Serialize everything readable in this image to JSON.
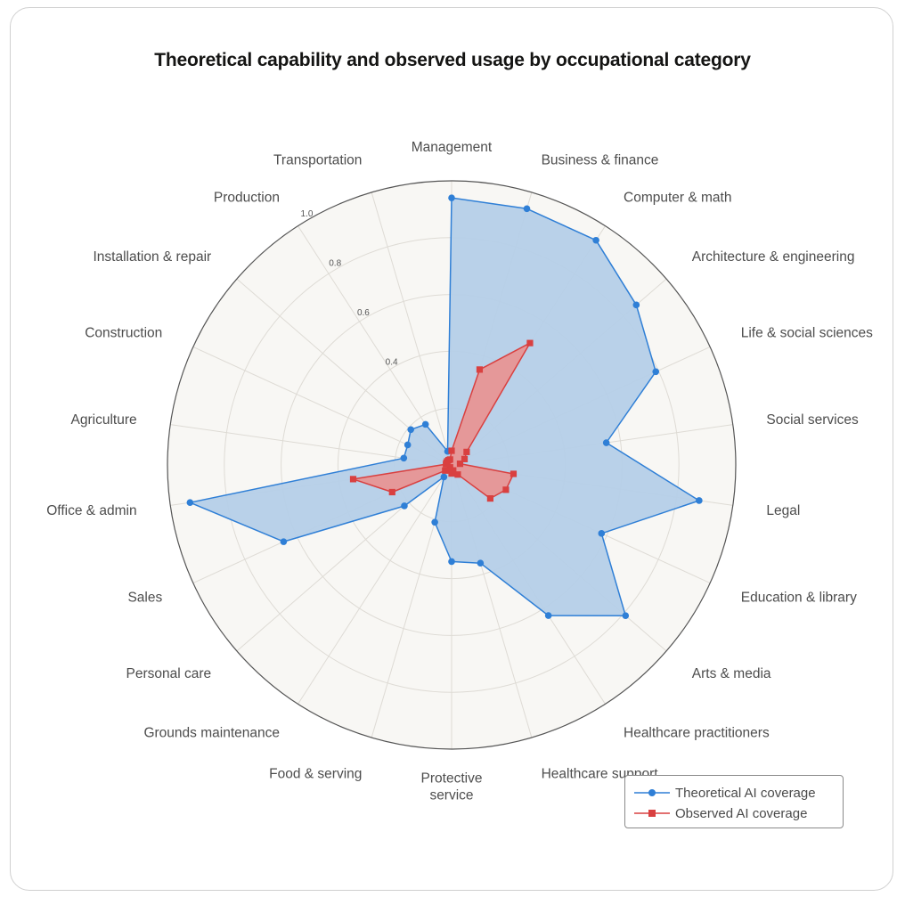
{
  "chart_data": {
    "type": "radar",
    "title": "Theoretical capability and observed usage by occupational category",
    "categories": [
      "Management",
      "Business & finance",
      "Computer & math",
      "Architecture & engineering",
      "Life & social sciences",
      "Social services",
      "Legal",
      "Education & library",
      "Arts & media",
      "Healthcare practitioners",
      "Healthcare support",
      "Protective\nservice",
      "Food & serving",
      "Grounds maintenance",
      "Personal care",
      "Sales",
      "Office & admin",
      "Agriculture",
      "Construction",
      "Installation & repair",
      "Production",
      "Transportation"
    ],
    "rlim": [
      0,
      1.0
    ],
    "rticks": [
      0.4,
      0.6,
      0.8,
      1.0
    ],
    "rtick_labels": [
      "0.4",
      "0.6",
      "0.8",
      "1.0"
    ],
    "grid": true,
    "legend_position": "bottom-right",
    "series": [
      {
        "name": "Theoretical AI coverage",
        "color": "#2f7fd6",
        "fill": "#b5cfe8",
        "marker": "circle",
        "values": [
          0.94,
          0.94,
          0.94,
          0.86,
          0.79,
          0.55,
          0.88,
          0.58,
          0.81,
          0.63,
          0.36,
          0.34,
          0.21,
          0.05,
          0.22,
          0.65,
          0.93,
          0.17,
          0.17,
          0.19,
          0.17,
          0.05
        ]
      },
      {
        "name": "Observed AI coverage",
        "color": "#d94040",
        "fill": "#ec8e8b",
        "marker": "square",
        "values": [
          0.05,
          0.35,
          0.51,
          0.07,
          0.05,
          0.03,
          0.22,
          0.21,
          0.18,
          0.04,
          0.02,
          0.03,
          0.02,
          0.01,
          0.03,
          0.23,
          0.35,
          0.02,
          0.02,
          0.02,
          0.02,
          0.02
        ]
      }
    ]
  },
  "legend": {
    "items": [
      {
        "label": "Theoretical AI coverage",
        "color": "#2f7fd6",
        "marker": "circle"
      },
      {
        "label": "Observed AI coverage",
        "color": "#d94040",
        "marker": "square"
      }
    ]
  }
}
